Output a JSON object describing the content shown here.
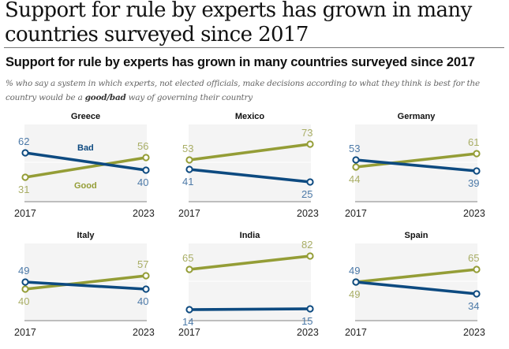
{
  "header": {
    "main_title": "Support for rule by experts has grown in many countries surveyed since 2017"
  },
  "chart_data": {
    "type": "line",
    "title": "Support for rule by experts has grown in many countries surveyed since 2017",
    "subtitle_parts": {
      "before": "% who say a system in which experts, not elected officials, make decisions according to what they think is best for the country would be a ",
      "emphasis": "good/bad",
      "after": " way of governing their country"
    },
    "x": [
      "2017",
      "2023"
    ],
    "ylim": [
      0,
      100
    ],
    "grid": "midline at 50",
    "legend": {
      "placement": "inline in first panel",
      "entries": [
        "Bad",
        "Good"
      ]
    },
    "colors": {
      "Good": "#949d36",
      "Bad": "#0d4a80",
      "Good_label": "#a9ae66",
      "Bad_label": "#4d7aa8"
    },
    "panels": [
      {
        "country": "Greece",
        "series": [
          {
            "name": "Bad",
            "values": [
              62,
              40
            ]
          },
          {
            "name": "Good",
            "values": [
              31,
              56
            ]
          }
        ]
      },
      {
        "country": "Mexico",
        "series": [
          {
            "name": "Bad",
            "values": [
              41,
              25
            ]
          },
          {
            "name": "Good",
            "values": [
              53,
              73
            ]
          }
        ]
      },
      {
        "country": "Germany",
        "series": [
          {
            "name": "Bad",
            "values": [
              53,
              39
            ]
          },
          {
            "name": "Good",
            "values": [
              44,
              61
            ]
          }
        ]
      },
      {
        "country": "Italy",
        "series": [
          {
            "name": "Bad",
            "values": [
              49,
              40
            ]
          },
          {
            "name": "Good",
            "values": [
              40,
              57
            ]
          }
        ]
      },
      {
        "country": "India",
        "series": [
          {
            "name": "Bad",
            "values": [
              14,
              15
            ]
          },
          {
            "name": "Good",
            "values": [
              65,
              82
            ]
          }
        ]
      },
      {
        "country": "Spain",
        "series": [
          {
            "name": "Bad",
            "values": [
              49,
              34
            ]
          },
          {
            "name": "Good",
            "values": [
              49,
              65
            ]
          }
        ]
      }
    ]
  }
}
